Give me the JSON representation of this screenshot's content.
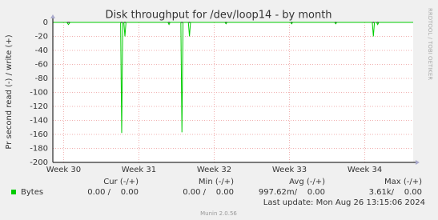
{
  "chart_data": {
    "type": "line",
    "title": "Disk throughput for /dev/loop14 - by month",
    "y_label": "Pr second read (-) / write (+)",
    "watermark": "RRDTOOL / TOBI OETIKER",
    "xlim": [
      -1,
      32.5
    ],
    "xticks": [
      {
        "value": 0,
        "label": "Week 30"
      },
      {
        "value": 7,
        "label": "Week 31"
      },
      {
        "value": 14,
        "label": "Week 32"
      },
      {
        "value": 21,
        "label": "Week 33"
      },
      {
        "value": 28,
        "label": "Week 34"
      }
    ],
    "ylim": [
      -200,
      0
    ],
    "yticks": [
      0,
      -20,
      -40,
      -60,
      -80,
      -100,
      -120,
      -140,
      -160,
      -180,
      -200
    ],
    "grid": true,
    "x": [
      -1,
      0.3,
      0.45,
      0.6,
      5.3,
      5.4,
      5.5,
      5.6,
      5.7,
      5.8,
      9.7,
      9.8,
      9.9,
      10.9,
      11.0,
      11.1,
      11.6,
      11.7,
      11.8,
      15.0,
      15.1,
      15.2,
      21.1,
      21.2,
      21.3,
      25.2,
      25.3,
      25.4,
      28.7,
      28.8,
      28.9,
      29.1,
      29.2,
      29.3,
      32.5
    ],
    "series": [
      {
        "name": "Bytes",
        "color": "#00cc00",
        "values": [
          0,
          0,
          -3,
          0,
          0,
          -158,
          0,
          0,
          -20,
          0,
          0,
          -3,
          0,
          0,
          -157,
          0,
          0,
          -20,
          0,
          0,
          -2,
          0,
          0,
          -2,
          0,
          0,
          -2,
          0,
          0,
          -20,
          0,
          0,
          -3,
          0,
          0
        ],
        "stats": [
          "0.00 /    0.00",
          "0.00 /    0.00",
          "997.62m/    0.00",
          "3.61k/    0.00"
        ]
      }
    ],
    "legend_columns": [
      "Cur (-/+)",
      "Min (-/+)",
      "Avg (-/+)",
      "Max (-/+)"
    ],
    "last_update": "Last update: Mon Aug 26 13:15:06 2024",
    "footer": "Munin 2.0.56"
  }
}
